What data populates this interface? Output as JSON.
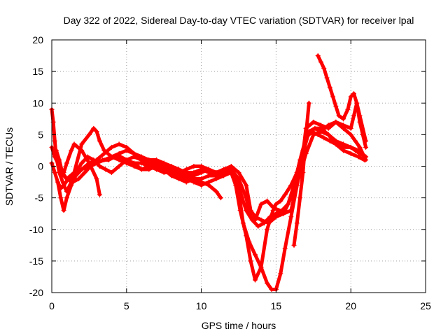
{
  "chart_data": {
    "type": "scatter",
    "title": "Day 322 of 2022, Sidereal Day-to-day VTEC variation (SDTVAR) for receiver lpal",
    "xlabel": "GPS time / hours",
    "ylabel": "SDTVAR / TECUs",
    "xlim": [
      0,
      25
    ],
    "ylim": [
      -20,
      20
    ],
    "xticks": [
      0,
      5,
      10,
      15,
      20,
      25
    ],
    "yticks": [
      -20,
      -15,
      -10,
      -5,
      0,
      5,
      10,
      15,
      20
    ],
    "grid": true,
    "marker": "plus",
    "color": "#ff0000",
    "series": [
      {
        "x": [
          0.0,
          0.2,
          0.4,
          0.6,
          0.8,
          1.1,
          1.5,
          2.0,
          2.5,
          3.0,
          3.5,
          4.0,
          4.5,
          5.0,
          5.5,
          6.0,
          6.5,
          7.0,
          7.5,
          8.0,
          8.5,
          9.0,
          9.5,
          10.0,
          10.5,
          11.0,
          11.5,
          12.0,
          12.5,
          13.0,
          13.3,
          13.6,
          14.0,
          14.4,
          14.8,
          15.2,
          15.6,
          16.0,
          16.4,
          16.8,
          17.2,
          17.6,
          18.0,
          18.5,
          19.0,
          19.5,
          20.0,
          20.5,
          21.0
        ],
        "y": [
          0.5,
          -1.0,
          -2.5,
          -3.5,
          -3.0,
          -2.0,
          -1.5,
          -0.5,
          0.0,
          0.5,
          1.0,
          1.5,
          2.0,
          2.5,
          2.0,
          1.5,
          1.0,
          0.5,
          0.0,
          -0.5,
          -1.0,
          -1.5,
          -1.5,
          -1.0,
          -0.5,
          -1.0,
          -0.5,
          -0.5,
          -2.0,
          -5.0,
          -8.0,
          -8.5,
          -6.0,
          -5.5,
          -6.5,
          -7.0,
          -7.0,
          -5.0,
          -1.0,
          2.0,
          5.5,
          6.0,
          5.5,
          5.0,
          4.0,
          3.5,
          3.0,
          2.5,
          1.5
        ]
      },
      {
        "x": [
          0.3,
          0.5,
          0.7,
          1.0,
          1.4,
          1.8,
          2.2,
          2.6,
          3.0,
          3.4,
          3.8,
          4.2,
          4.6,
          5.0,
          5.5,
          6.0,
          6.5,
          7.0,
          7.5,
          8.0,
          8.5,
          9.0,
          9.5,
          10.0,
          10.5,
          11.0,
          11.5,
          12.0,
          12.3,
          12.6,
          13.0,
          13.3,
          13.6,
          14.0,
          14.4,
          14.8,
          15.0,
          15.3,
          15.6,
          16.0,
          16.4,
          16.8,
          17.2,
          17.6,
          18.0,
          18.5,
          19.0,
          19.5,
          20.0,
          20.5,
          20.9
        ],
        "y": [
          2.5,
          1.0,
          -1.0,
          -2.0,
          -2.5,
          -2.0,
          -1.0,
          0.0,
          0.5,
          1.0,
          1.0,
          1.5,
          1.5,
          1.0,
          0.5,
          0.5,
          0.0,
          -0.5,
          -1.0,
          -1.0,
          -1.5,
          -1.5,
          -2.0,
          -2.0,
          -1.5,
          -1.5,
          -1.0,
          -1.0,
          -3.0,
          -7.0,
          -11.0,
          -15.0,
          -18.0,
          -16.0,
          -10.0,
          -7.0,
          -6.0,
          -5.5,
          -4.5,
          -3.0,
          -1.0,
          2.5,
          5.5,
          6.0,
          6.0,
          5.0,
          3.5,
          2.5,
          2.0,
          1.5,
          1.0
        ]
      },
      {
        "x": [
          0.0,
          0.1,
          0.2,
          0.3,
          0.5,
          0.8,
          1.0,
          1.3,
          1.6,
          2.0,
          2.4,
          2.8,
          3.2,
          3.6,
          4.0,
          4.5,
          5.0,
          5.5,
          6.0,
          6.5,
          7.0,
          7.5,
          8.0,
          8.5,
          9.0,
          9.5,
          10.0,
          10.5,
          11.0,
          11.5,
          12.0,
          12.5,
          12.8,
          13.2,
          13.6,
          14.0,
          14.4,
          14.7,
          15.0,
          15.3,
          15.6,
          16.0,
          16.4,
          16.8,
          17.0,
          17.5,
          18.0,
          18.5,
          19.0,
          19.5,
          20.0,
          20.3,
          20.6,
          21.0
        ],
        "y": [
          9.0,
          7.0,
          4.0,
          1.5,
          -1.0,
          -3.0,
          -4.0,
          -2.5,
          -1.0,
          0.5,
          1.5,
          1.0,
          0.0,
          -0.5,
          -1.0,
          0.0,
          1.0,
          1.5,
          1.0,
          0.5,
          0.0,
          -0.5,
          -1.0,
          -1.5,
          -2.0,
          -2.5,
          -3.0,
          -2.5,
          -2.0,
          -1.5,
          -1.0,
          -4.0,
          -9.0,
          -12.0,
          -14.0,
          -16.0,
          -18.5,
          -19.5,
          -19.5,
          -17.0,
          -13.0,
          -8.0,
          -3.0,
          2.0,
          6.0,
          7.0,
          6.5,
          6.0,
          7.0,
          6.0,
          5.0,
          4.0,
          3.0,
          1.0
        ]
      },
      {
        "x": [
          0.4,
          0.6,
          0.8,
          1.0,
          1.3,
          1.6,
          2.0,
          2.5,
          3.0,
          3.5,
          4.0,
          4.5,
          5.0,
          5.5,
          6.0,
          6.5,
          7.0,
          7.5,
          8.0,
          8.5,
          9.0,
          9.5,
          10.0,
          10.5,
          11.0,
          11.5,
          12.0,
          12.3,
          12.6,
          13.0,
          13.4,
          13.8,
          14.2,
          14.6,
          15.0,
          15.4,
          15.8,
          16.2,
          16.6,
          17.0,
          17.4,
          17.8,
          18.2,
          18.6,
          19.0,
          19.5,
          20.0,
          20.3,
          20.6,
          21.0
        ],
        "y": [
          -2.5,
          -5.0,
          -7.0,
          -5.0,
          -3.0,
          -1.5,
          -0.5,
          0.5,
          1.0,
          2.0,
          3.0,
          3.5,
          3.0,
          2.0,
          1.5,
          1.0,
          1.0,
          0.5,
          0.0,
          -0.5,
          -1.0,
          -1.0,
          -0.5,
          -1.0,
          -1.5,
          -1.0,
          -0.5,
          -2.0,
          -4.0,
          -7.0,
          -8.5,
          -9.5,
          -9.0,
          -8.0,
          -7.5,
          -7.0,
          -6.0,
          -3.0,
          1.0,
          4.5,
          5.5,
          5.0,
          4.5,
          4.0,
          3.5,
          3.0,
          3.0,
          2.5,
          2.0,
          1.5
        ]
      },
      {
        "x": [
          0.0,
          0.2,
          0.5,
          0.8,
          1.0,
          1.5,
          2.0,
          2.5,
          2.8,
          3.0,
          3.2,
          3.5,
          4.0,
          4.5,
          5.0,
          5.5,
          6.0,
          6.5,
          7.0,
          7.5,
          8.0,
          8.5,
          9.0,
          9.5,
          10.0,
          10.5,
          11.0,
          11.5,
          12.0,
          12.5,
          13.0,
          13.3,
          13.6,
          14.0,
          14.5,
          15.0,
          15.5,
          16.0,
          16.5,
          17.0,
          17.5,
          18.0,
          18.5,
          19.0,
          19.5,
          20.0,
          20.2,
          20.4,
          20.6,
          21.0
        ],
        "y": [
          3.0,
          1.5,
          0.0,
          -1.5,
          -2.0,
          -1.0,
          3.5,
          5.0,
          6.0,
          5.5,
          4.0,
          2.5,
          1.5,
          1.0,
          0.5,
          0.0,
          -0.5,
          0.0,
          0.5,
          0.0,
          -0.5,
          -1.0,
          -0.5,
          0.0,
          0.0,
          -0.5,
          -1.0,
          -0.5,
          0.0,
          -1.0,
          -3.0,
          -7.0,
          -8.0,
          -8.5,
          -9.0,
          -8.0,
          -7.5,
          -7.0,
          -2.0,
          2.0,
          5.0,
          5.5,
          6.5,
          7.0,
          6.5,
          6.0,
          8.0,
          10.0,
          8.0,
          4.0
        ]
      },
      {
        "x": [
          16.2,
          16.4,
          16.6,
          16.8,
          17.0,
          17.2
        ],
        "y": [
          -12.5,
          -9.0,
          -5.0,
          -1.0,
          5.0,
          10.0
        ]
      },
      {
        "x": [
          0.8,
          1.0,
          1.3,
          1.5,
          2.0,
          2.5,
          3.0,
          3.2
        ],
        "y": [
          -1.0,
          0.5,
          2.5,
          3.5,
          2.5,
          0.5,
          -2.0,
          -4.5
        ]
      },
      {
        "x": [
          17.8,
          18.0,
          18.2,
          18.4,
          18.6,
          18.8,
          19.0,
          19.2,
          19.5,
          19.8,
          20.0,
          20.2,
          20.4,
          20.6,
          20.8,
          21.0
        ],
        "y": [
          17.5,
          16.5,
          15.5,
          14.0,
          12.5,
          11.0,
          9.5,
          8.0,
          7.5,
          9.0,
          11.0,
          11.5,
          10.0,
          7.0,
          5.0,
          3.0
        ]
      },
      {
        "x": [
          5.5,
          6.0,
          6.5,
          7.0,
          7.5,
          8.0,
          8.5,
          9.0,
          9.5,
          10.0,
          10.5,
          11.0,
          11.3
        ],
        "y": [
          0.5,
          -0.5,
          -0.5,
          0.0,
          -0.5,
          -1.5,
          -2.0,
          -2.5,
          -2.0,
          -2.5,
          -3.0,
          -4.0,
          -5.0
        ]
      }
    ]
  }
}
